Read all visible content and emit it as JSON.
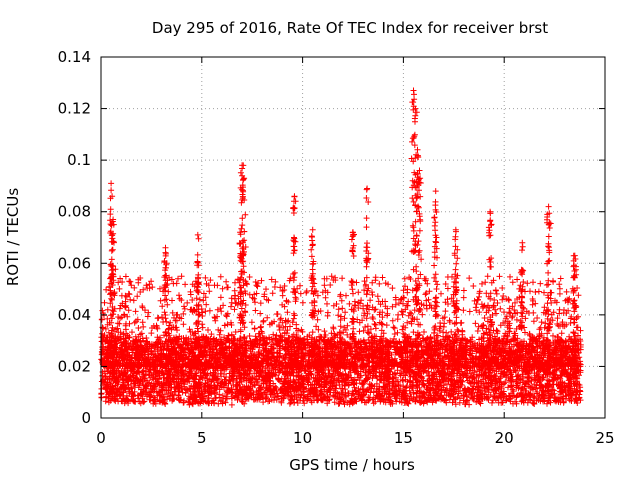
{
  "chart_data": {
    "type": "scatter",
    "title": "Day 295 of 2016, Rate Of TEC Index for receiver brst",
    "xlabel": "GPS time / hours",
    "ylabel": "ROTI / TECUs",
    "xlim": [
      0,
      25
    ],
    "ylim": [
      0,
      0.14
    ],
    "xticks": [
      0,
      5,
      10,
      15,
      20,
      25
    ],
    "yticks": [
      0,
      0.02,
      0.04,
      0.06,
      0.08,
      0.1,
      0.12,
      0.14
    ],
    "xtick_labels": [
      "0",
      "5",
      "10",
      "15",
      "20",
      "25"
    ],
    "ytick_labels": [
      "0",
      "0.02",
      "0.04",
      "0.06",
      "0.08",
      "0.1",
      "0.12",
      "0.14"
    ],
    "grid": true,
    "marker": "+",
    "color": "#ff0000",
    "x_range_data": [
      0,
      23.8
    ],
    "baseline_band": [
      0.005,
      0.03
    ],
    "peaks": [
      {
        "x": 0.5,
        "y": 0.091
      },
      {
        "x": 0.6,
        "y": 0.077
      },
      {
        "x": 3.2,
        "y": 0.066
      },
      {
        "x": 4.8,
        "y": 0.071
      },
      {
        "x": 6.9,
        "y": 0.072
      },
      {
        "x": 7.0,
        "y": 0.098
      },
      {
        "x": 7.1,
        "y": 0.093
      },
      {
        "x": 9.6,
        "y": 0.086
      },
      {
        "x": 10.5,
        "y": 0.073
      },
      {
        "x": 12.5,
        "y": 0.072
      },
      {
        "x": 13.2,
        "y": 0.089
      },
      {
        "x": 15.5,
        "y": 0.127
      },
      {
        "x": 15.6,
        "y": 0.12
      },
      {
        "x": 15.7,
        "y": 0.104
      },
      {
        "x": 15.8,
        "y": 0.096
      },
      {
        "x": 16.6,
        "y": 0.088
      },
      {
        "x": 17.6,
        "y": 0.073
      },
      {
        "x": 19.3,
        "y": 0.08
      },
      {
        "x": 20.9,
        "y": 0.068
      },
      {
        "x": 22.2,
        "y": 0.082
      },
      {
        "x": 23.5,
        "y": 0.063
      }
    ]
  }
}
